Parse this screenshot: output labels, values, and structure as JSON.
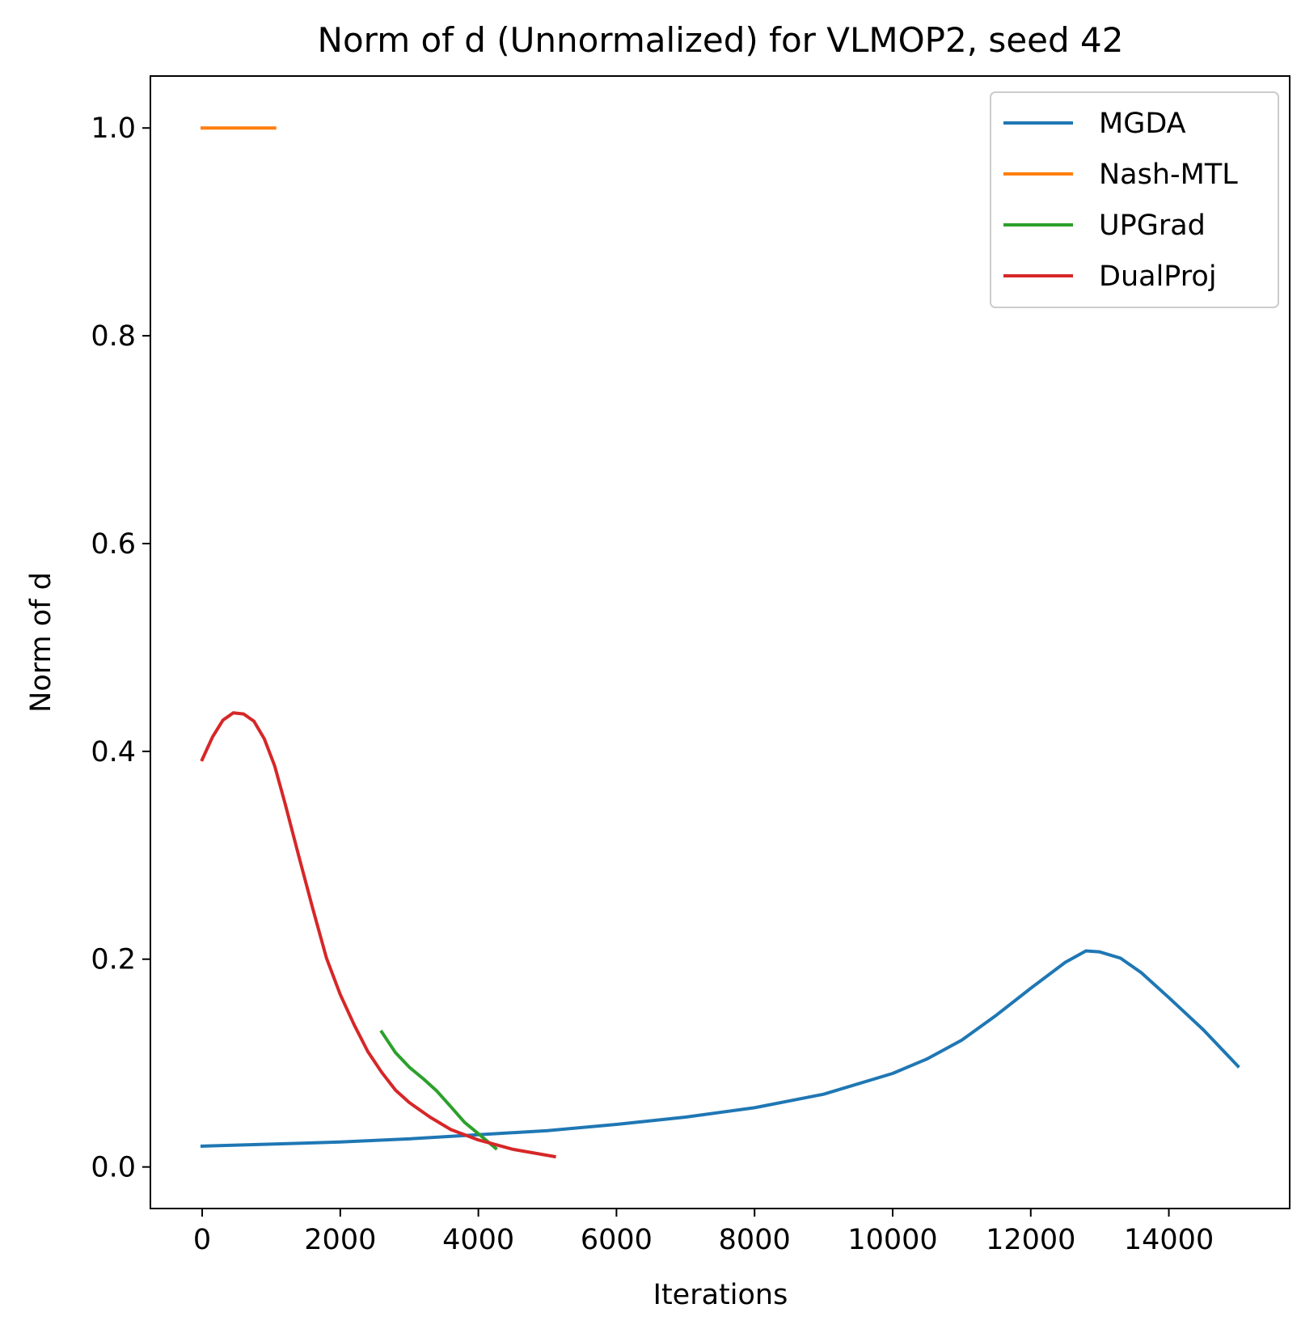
{
  "chart_data": {
    "type": "line",
    "title": "Norm of d (Unnormalized) for VLMOP2, seed 42",
    "xlabel": "Iterations",
    "ylabel": "Norm of d",
    "xlim": [
      -750,
      15750
    ],
    "ylim": [
      -0.04,
      1.05
    ],
    "xticks": [
      0,
      2000,
      4000,
      6000,
      8000,
      10000,
      12000,
      14000
    ],
    "xtick_labels": [
      "0",
      "2000",
      "4000",
      "6000",
      "8000",
      "10000",
      "12000",
      "14000"
    ],
    "yticks": [
      0.0,
      0.2,
      0.4,
      0.6,
      0.8,
      1.0
    ],
    "ytick_labels": [
      "0.0",
      "0.2",
      "0.4",
      "0.6",
      "0.8",
      "1.0"
    ],
    "grid": false,
    "legend_position": "top-right",
    "series": [
      {
        "name": "MGDA",
        "color": "#1f77b4",
        "x": [
          0,
          1000,
          2000,
          3000,
          4000,
          5000,
          6000,
          7000,
          8000,
          9000,
          10000,
          10500,
          11000,
          11500,
          12000,
          12500,
          12800,
          13000,
          13300,
          13600,
          14000,
          14500,
          15000
        ],
        "y": [
          0.02,
          0.022,
          0.024,
          0.027,
          0.031,
          0.035,
          0.041,
          0.048,
          0.057,
          0.07,
          0.09,
          0.104,
          0.122,
          0.146,
          0.172,
          0.197,
          0.208,
          0.207,
          0.201,
          0.187,
          0.163,
          0.132,
          0.097
        ]
      },
      {
        "name": "Nash-MTL",
        "color": "#ff7f0e",
        "x": [
          0,
          1050
        ],
        "y": [
          1.0,
          1.0
        ]
      },
      {
        "name": "UPGrad",
        "color": "#2ca02c",
        "x": [
          2600,
          2800,
          3000,
          3200,
          3400,
          3600,
          3800,
          4000,
          4250
        ],
        "y": [
          0.13,
          0.11,
          0.096,
          0.085,
          0.073,
          0.058,
          0.043,
          0.032,
          0.018
        ]
      },
      {
        "name": "DualProj",
        "color": "#d62728",
        "x": [
          0,
          150,
          300,
          450,
          600,
          750,
          900,
          1050,
          1200,
          1400,
          1600,
          1800,
          2000,
          2200,
          2400,
          2600,
          2800,
          3000,
          3300,
          3600,
          4000,
          4500,
          5100
        ],
        "y": [
          0.392,
          0.414,
          0.43,
          0.437,
          0.436,
          0.429,
          0.412,
          0.386,
          0.35,
          0.299,
          0.249,
          0.201,
          0.166,
          0.137,
          0.111,
          0.091,
          0.074,
          0.062,
          0.048,
          0.036,
          0.026,
          0.017,
          0.01
        ]
      }
    ]
  }
}
